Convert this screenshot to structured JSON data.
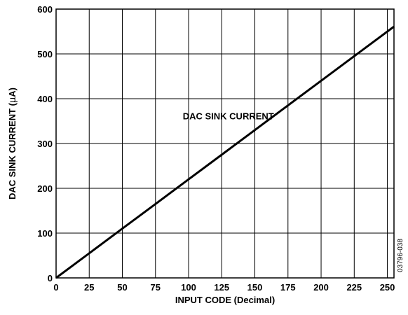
{
  "chart_data": {
    "type": "line",
    "title": "",
    "xlabel": "INPUT CODE (Decimal)",
    "ylabel_parts": [
      "DAC SINK CURRENT (",
      "μ",
      "A)"
    ],
    "xlim": [
      0,
      255
    ],
    "ylim": [
      0,
      600
    ],
    "xticks": [
      0,
      25,
      50,
      75,
      100,
      125,
      150,
      175,
      200,
      225,
      250
    ],
    "yticks": [
      0,
      100,
      200,
      300,
      400,
      500,
      600
    ],
    "grid": true,
    "series": [
      {
        "name": "DAC SINK CURRENT",
        "x": [
          0,
          25,
          50,
          75,
          100,
          125,
          150,
          175,
          200,
          225,
          255
        ],
        "y": [
          0,
          55,
          110,
          165,
          220,
          275,
          330,
          385,
          440,
          495,
          561
        ]
      }
    ],
    "annotations": [
      {
        "text": "DAC SINK CURRENT",
        "x": 130,
        "y": 362
      }
    ],
    "figure_id": "03796-038"
  }
}
